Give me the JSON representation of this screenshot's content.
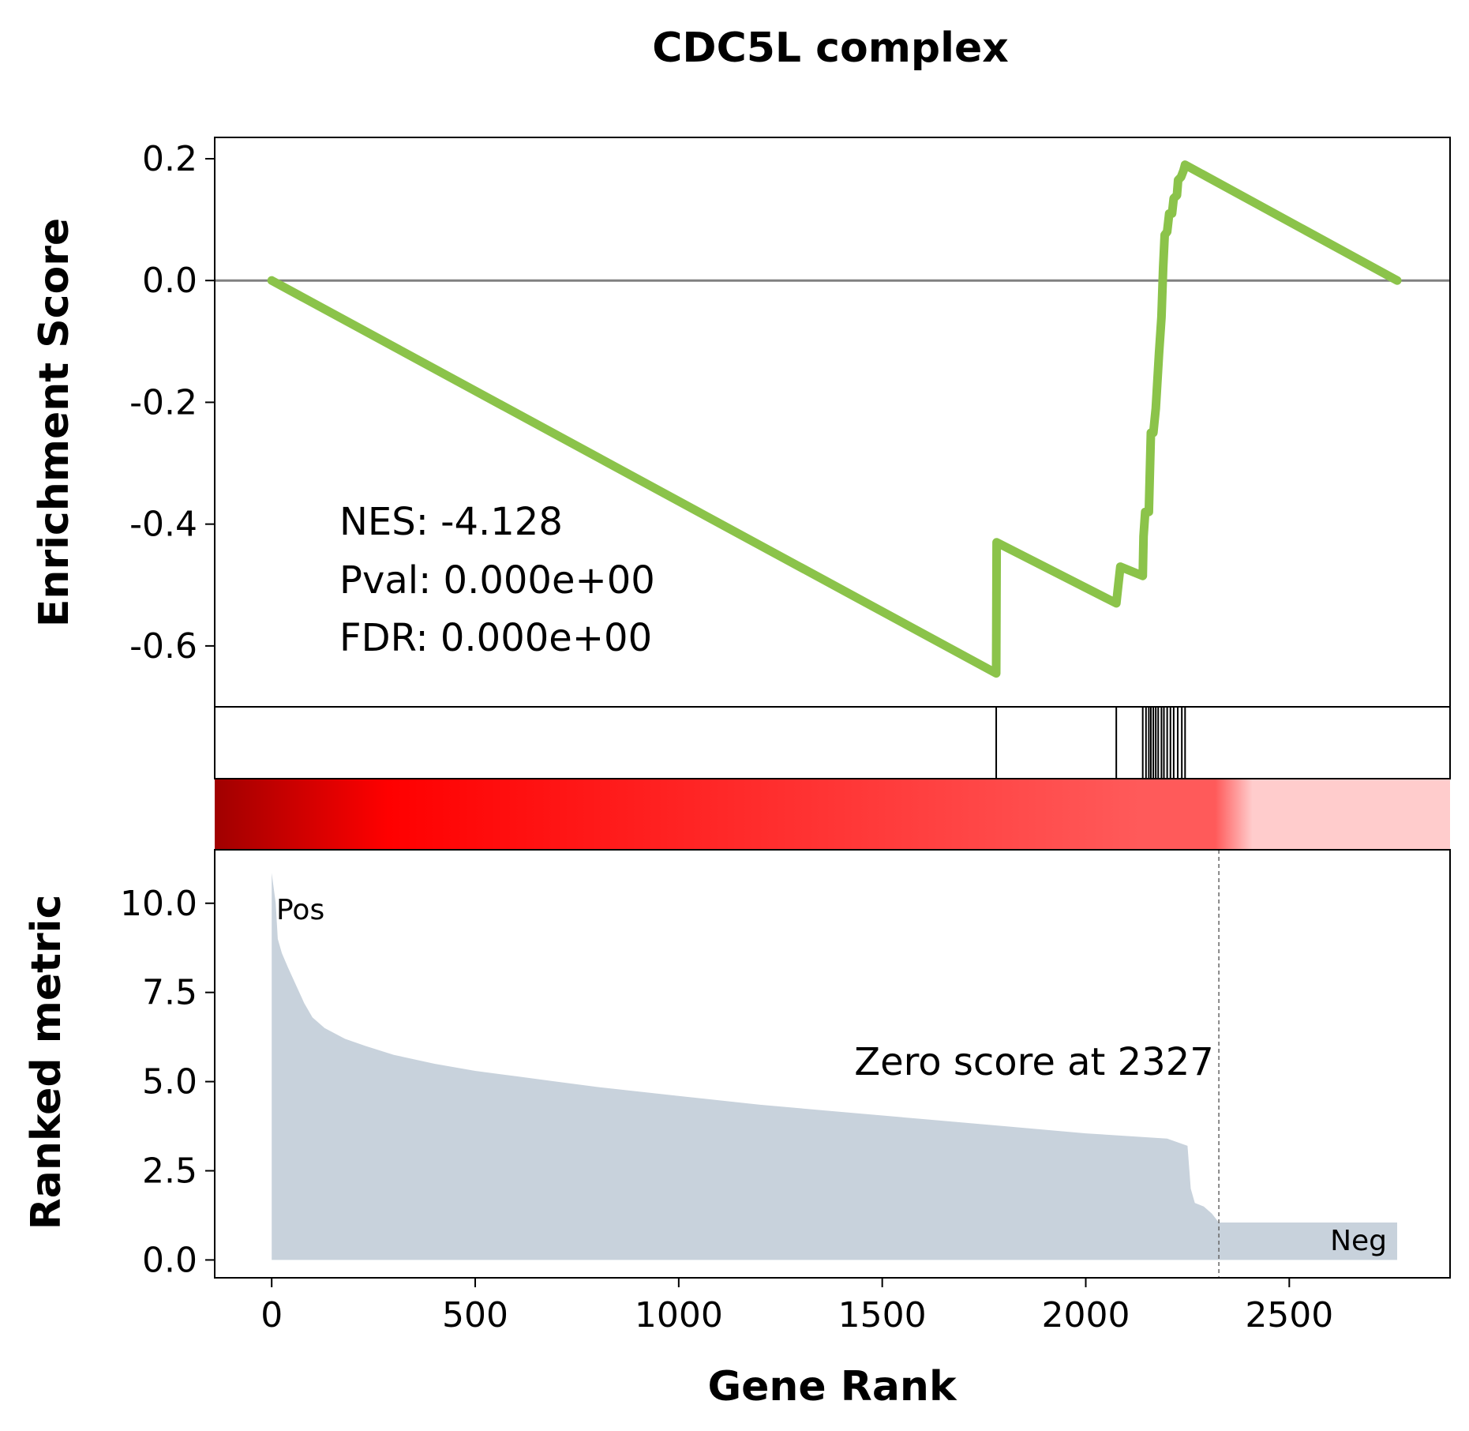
{
  "chart_data": {
    "type": "line",
    "title": "CDC5L complex",
    "xlabel": "Gene Rank",
    "xlim": [
      -140,
      2895
    ],
    "xticks": [
      0,
      500,
      1000,
      1500,
      2000,
      2500
    ],
    "xtick_labels": [
      "0",
      "500",
      "1000",
      "1500",
      "2000",
      "2500"
    ],
    "es_panel": {
      "ylabel": "Enrichment Score",
      "ylim": [
        -0.7,
        0.235
      ],
      "yticks": [
        0.2,
        0.0,
        -0.2,
        -0.4,
        -0.6
      ],
      "ytick_labels": [
        "0.2",
        "0.0",
        "-0.2",
        "-0.4",
        "-0.6"
      ],
      "zero_line": true,
      "series_color": "#8bc34a",
      "points": [
        [
          0,
          0.0
        ],
        [
          1780,
          -0.645
        ],
        [
          1781,
          -0.43
        ],
        [
          2075,
          -0.53
        ],
        [
          2080,
          -0.5
        ],
        [
          2085,
          -0.47
        ],
        [
          2140,
          -0.485
        ],
        [
          2142,
          -0.42
        ],
        [
          2146,
          -0.38
        ],
        [
          2155,
          -0.38
        ],
        [
          2160,
          -0.25
        ],
        [
          2166,
          -0.25
        ],
        [
          2172,
          -0.21
        ],
        [
          2180,
          -0.12
        ],
        [
          2186,
          -0.06
        ],
        [
          2190,
          0.02
        ],
        [
          2194,
          0.075
        ],
        [
          2200,
          0.08
        ],
        [
          2205,
          0.11
        ],
        [
          2212,
          0.11
        ],
        [
          2216,
          0.135
        ],
        [
          2224,
          0.14
        ],
        [
          2227,
          0.165
        ],
        [
          2234,
          0.17
        ],
        [
          2240,
          0.18
        ],
        [
          2244,
          0.19
        ],
        [
          2765,
          0.0
        ]
      ]
    },
    "stats": {
      "nes": "NES: -4.128",
      "pval": "Pval: 0.000e+00",
      "fdr": "FDR: 0.000e+00"
    },
    "hits": [
      1780,
      2075,
      2140,
      2148,
      2155,
      2160,
      2166,
      2172,
      2178,
      2186,
      2192,
      2200,
      2208,
      2216,
      2226,
      2236,
      2244
    ],
    "hit_color": "#000000",
    "heatmap": {
      "colormap": "red-gradient",
      "dark_color": "#a00000",
      "peak_color": "#ff0000",
      "mid_color": "#ff5a5a",
      "light_color": "#ffcccc",
      "zero_index": 2327
    },
    "rank_panel": {
      "ylabel": "Ranked metric",
      "ylim": [
        -0.5,
        11.5
      ],
      "yticks": [
        0.0,
        2.5,
        5.0,
        7.5,
        10.0
      ],
      "ytick_labels": [
        "0.0",
        "2.5",
        "5.0",
        "7.5",
        "10.0"
      ],
      "fill_color": "#c8d2dc",
      "pos_label": "Pos",
      "pos_color": "#ff0000",
      "neg_label": "Neg",
      "neg_color": "#0000ff",
      "zero_text": "Zero score at 2327",
      "zero_line_x": 2327,
      "metric": [
        [
          0,
          10.85
        ],
        [
          10,
          10.0
        ],
        [
          15,
          9.0
        ],
        [
          25,
          8.6
        ],
        [
          40,
          8.2
        ],
        [
          60,
          7.7
        ],
        [
          80,
          7.2
        ],
        [
          100,
          6.8
        ],
        [
          130,
          6.5
        ],
        [
          180,
          6.2
        ],
        [
          230,
          6.0
        ],
        [
          300,
          5.75
        ],
        [
          400,
          5.5
        ],
        [
          500,
          5.3
        ],
        [
          600,
          5.15
        ],
        [
          700,
          5.0
        ],
        [
          800,
          4.85
        ],
        [
          1000,
          4.6
        ],
        [
          1200,
          4.35
        ],
        [
          1400,
          4.15
        ],
        [
          1600,
          3.95
        ],
        [
          1800,
          3.75
        ],
        [
          2000,
          3.55
        ],
        [
          2200,
          3.4
        ],
        [
          2250,
          3.2
        ],
        [
          2258,
          2.0
        ],
        [
          2268,
          1.6
        ],
        [
          2290,
          1.5
        ],
        [
          2310,
          1.3
        ],
        [
          2327,
          1.05
        ],
        [
          2765,
          1.05
        ]
      ]
    }
  }
}
